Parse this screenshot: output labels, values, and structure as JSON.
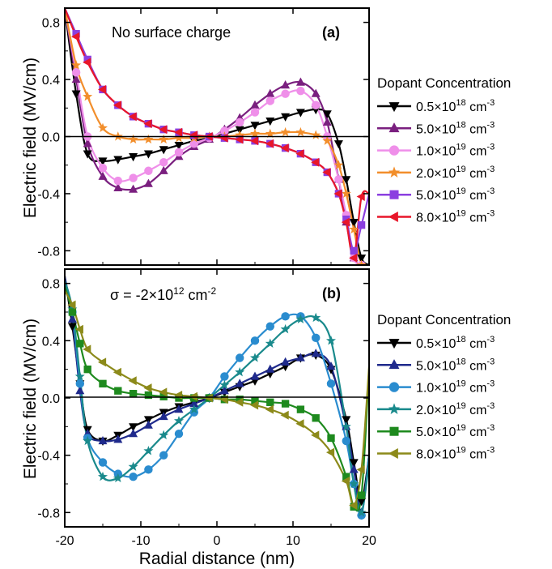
{
  "chart_data": [
    {
      "type": "line",
      "panel_label": "(a)",
      "annotation": "No surface charge",
      "ylabel": "Electric field (MV/cm)",
      "xlim": [
        -20,
        20
      ],
      "ylim": [
        -0.9,
        0.9
      ],
      "yticks": [
        "0.8",
        "0.4",
        "0.0",
        "-0.4",
        "-0.8"
      ],
      "legend_title": "Dopant Concentration",
      "legend_position": "right",
      "series": [
        {
          "name_base": "0.5×10",
          "name_exp": "18",
          "name_unit": " cm",
          "name_unit_exp": "-3",
          "color": "#000000",
          "marker": "tri-down",
          "x": [
            -20,
            -18.5,
            -17,
            -15,
            -13,
            -11,
            -9,
            -7,
            -5,
            -3,
            -1,
            1,
            3,
            5,
            7,
            9,
            11,
            13,
            14.5,
            16,
            17,
            18,
            19,
            20
          ],
          "y": [
            0.9,
            0.3,
            -0.12,
            -0.17,
            -0.16,
            -0.14,
            -0.12,
            -0.09,
            -0.06,
            -0.03,
            -0.01,
            0.02,
            0.05,
            0.08,
            0.11,
            0.14,
            0.17,
            0.19,
            0.16,
            -0.05,
            -0.3,
            -0.6,
            -0.85,
            -0.9
          ]
        },
        {
          "name_base": "5.0×10",
          "name_exp": "18",
          "name_unit": " cm",
          "name_unit_exp": "-3",
          "color": "#7a1f7f",
          "marker": "tri-up",
          "x": [
            -20,
            -18.5,
            -17,
            -15,
            -13,
            -11,
            -9,
            -7,
            -5,
            -3,
            -1,
            1,
            3,
            5,
            7,
            9,
            11,
            13,
            14.5,
            16,
            17,
            18,
            19,
            20
          ],
          "y": [
            0.9,
            0.4,
            -0.05,
            -0.28,
            -0.36,
            -0.37,
            -0.33,
            -0.24,
            -0.14,
            -0.07,
            -0.02,
            0.05,
            0.13,
            0.22,
            0.3,
            0.36,
            0.38,
            0.3,
            0.1,
            -0.3,
            -0.6,
            -0.85,
            -0.9,
            -0.9
          ]
        },
        {
          "name_base": "1.0×10",
          "name_exp": "19",
          "name_unit": " cm",
          "name_unit_exp": "-3",
          "color": "#ef8fe9",
          "marker": "circle",
          "x": [
            -20,
            -18.5,
            -17,
            -15,
            -13,
            -11,
            -9,
            -7,
            -5,
            -3,
            -1,
            1,
            3,
            5,
            7,
            9,
            11,
            13,
            14.5,
            16,
            17,
            18,
            19,
            20
          ],
          "y": [
            0.9,
            0.45,
            0.0,
            -0.22,
            -0.31,
            -0.29,
            -0.24,
            -0.18,
            -0.11,
            -0.05,
            -0.01,
            0.04,
            0.1,
            0.17,
            0.25,
            0.3,
            0.32,
            0.22,
            0.0,
            -0.3,
            -0.55,
            -0.85,
            -0.9,
            -0.9
          ]
        },
        {
          "name_base": "2.0×10",
          "name_exp": "19",
          "name_unit": " cm",
          "name_unit_exp": "-3",
          "color": "#f28e2b",
          "marker": "star",
          "x": [
            -20,
            -18.5,
            -17,
            -15,
            -13,
            -11,
            -9,
            -7,
            -5,
            -3,
            -1,
            1,
            3,
            5,
            7,
            9,
            11,
            13,
            14.5,
            16,
            17,
            18,
            19,
            20
          ],
          "y": [
            0.9,
            0.5,
            0.28,
            0.06,
            0.0,
            -0.02,
            -0.02,
            -0.02,
            -0.01,
            -0.01,
            0.0,
            0.0,
            0.01,
            0.02,
            0.02,
            0.03,
            0.03,
            0.01,
            -0.03,
            -0.2,
            -0.4,
            -0.65,
            -0.9,
            -0.9
          ]
        },
        {
          "name_base": "5.0×10",
          "name_exp": "19",
          "name_unit": " cm",
          "name_unit_exp": "-3",
          "color": "#8b3fe0",
          "marker": "square",
          "x": [
            -20,
            -18.5,
            -17,
            -15,
            -13,
            -11,
            -9,
            -7,
            -5,
            -3,
            -1,
            1,
            3,
            5,
            7,
            9,
            11,
            13,
            14.5,
            16,
            17,
            18,
            19,
            20
          ],
          "y": [
            0.9,
            0.72,
            0.54,
            0.33,
            0.22,
            0.14,
            0.09,
            0.05,
            0.03,
            0.01,
            0.0,
            -0.01,
            -0.02,
            -0.03,
            -0.05,
            -0.08,
            -0.12,
            -0.18,
            -0.25,
            -0.4,
            -0.58,
            -0.8,
            -0.62,
            -0.4
          ]
        },
        {
          "name_base": "8.0×10",
          "name_exp": "19",
          "name_unit": " cm",
          "name_unit_exp": "-3",
          "color": "#e8162a",
          "marker": "tri-left",
          "x": [
            -20,
            -18.5,
            -17,
            -15,
            -13,
            -11,
            -9,
            -7,
            -5,
            -3,
            -1,
            1,
            3,
            5,
            7,
            9,
            11,
            13,
            14.5,
            16,
            17,
            18,
            19,
            20
          ],
          "y": [
            0.9,
            0.7,
            0.52,
            0.33,
            0.22,
            0.14,
            0.09,
            0.05,
            0.03,
            0.01,
            0.0,
            -0.01,
            -0.02,
            -0.03,
            -0.05,
            -0.08,
            -0.12,
            -0.18,
            -0.25,
            -0.4,
            -0.6,
            -0.85,
            -0.42,
            -0.4
          ]
        }
      ]
    },
    {
      "type": "line",
      "panel_label": "(b)",
      "annotation_prefix": "σ = -2×10",
      "annotation_exp": "12",
      "annotation_unit": " cm",
      "annotation_unit_exp": "-2",
      "ylabel": "Electric field (MV/cm)",
      "xlabel": "Radial distance (nm)",
      "xlim": [
        -20,
        20
      ],
      "ylim": [
        -0.9,
        0.9
      ],
      "xticks": [
        "-20",
        "-10",
        "0",
        "10",
        "20"
      ],
      "yticks": [
        "0.8",
        "0.4",
        "0.0",
        "-0.4",
        "-0.8"
      ],
      "legend_title": "Dopant Concentration",
      "legend_position": "right",
      "series": [
        {
          "name_base": "0.5×10",
          "name_exp": "18",
          "name_unit": " cm",
          "name_unit_exp": "-3",
          "color": "#000000",
          "marker": "tri-down",
          "x": [
            -20,
            -19,
            -18,
            -17,
            -15,
            -13,
            -11,
            -9,
            -7,
            -5,
            -3,
            -1,
            1,
            3,
            5,
            7,
            9,
            11,
            13,
            15,
            17,
            18,
            19,
            20
          ],
          "y": [
            0.85,
            0.5,
            0.1,
            -0.22,
            -0.3,
            -0.26,
            -0.2,
            -0.15,
            -0.1,
            -0.06,
            -0.03,
            0.0,
            0.04,
            0.08,
            0.12,
            0.17,
            0.22,
            0.28,
            0.3,
            0.2,
            -0.15,
            -0.45,
            -0.72,
            -0.4
          ]
        },
        {
          "name_base": "5.0×10",
          "name_exp": "18",
          "name_unit": " cm",
          "name_unit_exp": "-3",
          "color": "#1f2a8c",
          "marker": "tri-up",
          "x": [
            -20,
            -19,
            -18,
            -17,
            -15,
            -13,
            -11,
            -9,
            -7,
            -5,
            -3,
            -1,
            1,
            3,
            5,
            7,
            9,
            11,
            13,
            15,
            17,
            18,
            19,
            20
          ],
          "y": [
            0.85,
            0.55,
            0.05,
            -0.25,
            -0.3,
            -0.29,
            -0.25,
            -0.19,
            -0.13,
            -0.08,
            -0.04,
            0.0,
            0.05,
            0.1,
            0.15,
            0.2,
            0.25,
            0.28,
            0.31,
            0.22,
            -0.2,
            -0.5,
            -0.8,
            -0.4
          ]
        },
        {
          "name_base": "1.0×10",
          "name_exp": "19",
          "name_unit": " cm",
          "name_unit_exp": "-3",
          "color": "#2a8ccf",
          "marker": "circle",
          "x": [
            -20,
            -19,
            -18,
            -17,
            -15,
            -13,
            -11,
            -9,
            -7,
            -5,
            -3,
            -1,
            1,
            3,
            5,
            7,
            9,
            11,
            13,
            15,
            17,
            18,
            19,
            20
          ],
          "y": [
            0.82,
            0.6,
            0.1,
            -0.28,
            -0.45,
            -0.53,
            -0.55,
            -0.5,
            -0.4,
            -0.25,
            -0.1,
            0.0,
            0.15,
            0.28,
            0.4,
            0.5,
            0.57,
            0.57,
            0.42,
            0.1,
            -0.3,
            -0.6,
            -0.82,
            -0.4
          ]
        },
        {
          "name_base": "2.0×10",
          "name_exp": "19",
          "name_unit": " cm",
          "name_unit_exp": "-3",
          "color": "#1a8a8c",
          "marker": "star",
          "x": [
            -20,
            -19,
            -18,
            -17,
            -15,
            -13,
            -11,
            -9,
            -7,
            -5,
            -3,
            -1,
            1,
            3,
            5,
            7,
            9,
            11,
            13,
            15,
            17,
            18,
            19,
            20
          ],
          "y": [
            0.82,
            0.62,
            0.15,
            -0.3,
            -0.55,
            -0.56,
            -0.48,
            -0.37,
            -0.26,
            -0.16,
            -0.08,
            0.0,
            0.09,
            0.18,
            0.28,
            0.38,
            0.48,
            0.55,
            0.56,
            0.4,
            -0.2,
            -0.6,
            -0.8,
            -0.45
          ]
        },
        {
          "name_base": "5.0×10",
          "name_exp": "19",
          "name_unit": " cm",
          "name_unit_exp": "-3",
          "color": "#1e8a1e",
          "marker": "square",
          "x": [
            -20,
            -19,
            -18,
            -17,
            -15,
            -13,
            -11,
            -9,
            -7,
            -5,
            -3,
            -1,
            1,
            3,
            5,
            7,
            9,
            11,
            13,
            15,
            17,
            18,
            19,
            20
          ],
          "y": [
            0.78,
            0.6,
            0.38,
            0.2,
            0.1,
            0.05,
            0.03,
            0.02,
            0.01,
            0.0,
            0.0,
            0.0,
            -0.01,
            -0.01,
            -0.02,
            -0.03,
            -0.04,
            -0.08,
            -0.14,
            -0.28,
            -0.55,
            -0.76,
            -0.68,
            0.2
          ]
        },
        {
          "name_base": "8.0×10",
          "name_exp": "19",
          "name_unit": " cm",
          "name_unit_exp": "-3",
          "color": "#8c8a1a",
          "marker": "tri-left",
          "x": [
            -20,
            -19,
            -18,
            -17,
            -15,
            -13,
            -11,
            -9,
            -7,
            -5,
            -3,
            -1,
            1,
            3,
            5,
            7,
            9,
            11,
            13,
            15,
            17,
            18,
            19,
            20
          ],
          "y": [
            0.75,
            0.65,
            0.48,
            0.34,
            0.25,
            0.18,
            0.12,
            0.07,
            0.04,
            0.02,
            0.01,
            0.0,
            -0.01,
            -0.03,
            -0.05,
            -0.08,
            -0.12,
            -0.18,
            -0.26,
            -0.38,
            -0.58,
            -0.75,
            -0.5,
            0.22
          ]
        }
      ]
    }
  ]
}
